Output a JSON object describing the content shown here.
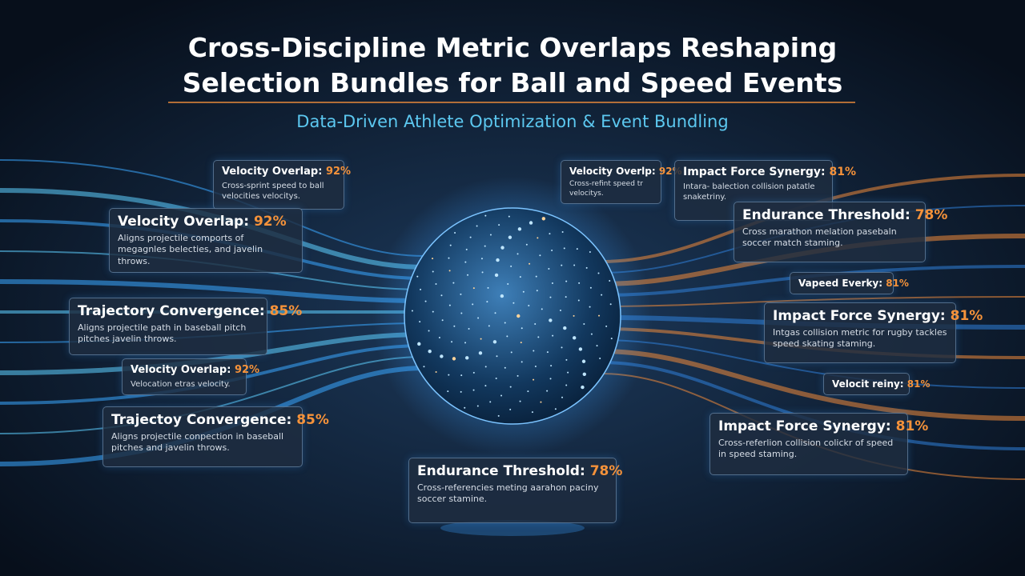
{
  "header": {
    "title_lines": [
      "Cross-Discipline Metric Overlaps Reshaping",
      "Selection Bundles for Ball and Speed Events"
    ],
    "subtitle": "Data-Driven Athlete Optimization & Event Bundling"
  },
  "cards": [
    {
      "label": "Velocity Overlap:",
      "value": "92%",
      "desc": "Cross-sprint speed to ball velocities velocitys."
    },
    {
      "label": "Velocity Overlap:",
      "value": "92%",
      "desc": "Aligns projectile comports of megagnles belecties, and javelin throws."
    },
    {
      "label": "Trajectory Convergence:",
      "value": "85%",
      "desc": "Aligns projectile path in baseball pitch pitches javelin throws."
    },
    {
      "label": "Velocity Overlap:",
      "value": "92%",
      "desc": "Velocation etras velocity."
    },
    {
      "label": "Trajectoy Convergence:",
      "value": "85%",
      "desc": "Aligns projectile conpection in baseball pitches and javelin throws."
    },
    {
      "label": "Endurance Threshold:",
      "value": "78%",
      "desc": "Cross-referencies meting aarahon paciny soccer stamine."
    },
    {
      "label": "Velocity Overlp:",
      "value": "92%",
      "desc": "Cross-refint speed tr velocitys."
    },
    {
      "label": "Impact Force Synergy:",
      "value": "81%",
      "desc": "Intara- balection collision patatle snaketriny."
    },
    {
      "label": "Endurance Threshold:",
      "value": "78%",
      "desc": "Cross marathon melation pasebaln soccer match staming."
    },
    {
      "label": "Vapeed Everky:",
      "value": "81%"
    },
    {
      "label": "Impact Force Synergy:",
      "value": "81%",
      "desc": "Intgas collision metric for rugby tackles speed skating staming."
    },
    {
      "label": "Velocit reiny:",
      "value": "81%"
    },
    {
      "label": "Impact Force Synergy:",
      "value": "81%",
      "desc": "Cross-referlion collision colickr of speed in speed staming."
    }
  ]
}
